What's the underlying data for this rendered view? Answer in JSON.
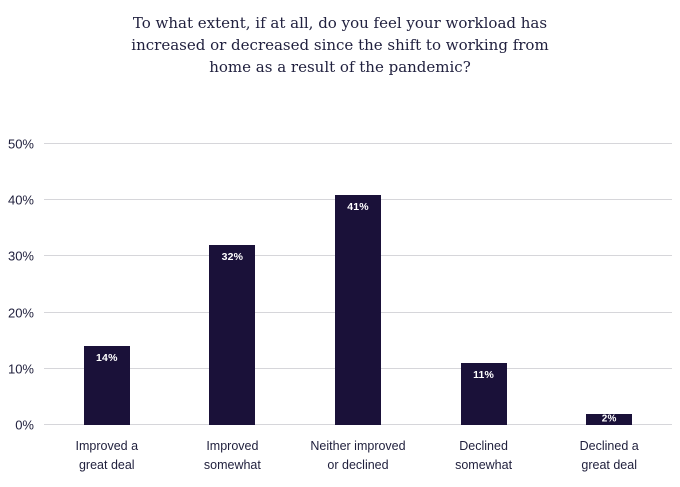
{
  "chart_data": {
    "type": "bar",
    "title": "To what extent, if at all, do you feel your workload has\nincreased or decreased since the shift to working from\nhome as a result of the pandemic?",
    "categories": [
      "Improved a\ngreat deal",
      "Improved\nsomewhat",
      "Neither improved\nor declined",
      "Declined\nsomewhat",
      "Declined a\ngreat deal"
    ],
    "values": [
      14,
      32,
      41,
      11,
      2
    ],
    "data_labels": [
      "14%",
      "32%",
      "41%",
      "11%",
      "2%"
    ],
    "xlabel": "",
    "ylabel": "",
    "ylim": [
      0,
      50
    ],
    "yticks": [
      0,
      10,
      20,
      30,
      40,
      50
    ],
    "ytick_labels": [
      "0%",
      "10%",
      "20%",
      "30%",
      "40%",
      "50%"
    ],
    "grid": true,
    "legend": "none",
    "bar_color": "#1a1139",
    "label_color": "#ffffff",
    "axis_text_color": "#1f1f3c",
    "gridline_color": "#d6d6da"
  }
}
